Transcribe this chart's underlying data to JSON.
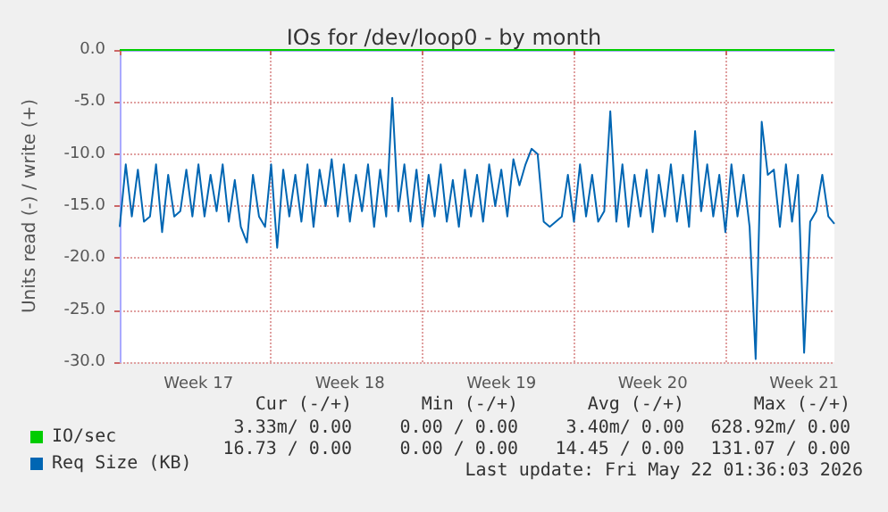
{
  "chart_data": {
    "type": "line",
    "title": "IOs for /dev/loop0 - by month",
    "ylabel": "Units read (-) / write (+)",
    "categories": [
      null,
      null,
      null,
      null,
      null,
      null,
      null,
      null,
      null,
      null,
      null,
      null,
      null,
      "Week 17",
      null,
      null,
      null,
      null,
      null,
      null,
      null,
      null,
      null,
      null,
      null,
      null,
      null,
      null,
      null,
      null,
      null,
      null,
      null,
      null,
      null,
      null,
      null,
      null,
      "Week 18",
      null,
      null,
      null,
      null,
      null,
      null,
      null,
      null,
      null,
      null,
      null,
      null,
      null,
      null,
      null,
      null,
      null,
      null,
      null,
      null,
      null,
      null,
      null,
      null,
      "Week 19",
      null,
      null,
      null,
      null,
      null,
      null,
      null,
      null,
      null,
      null,
      null,
      null,
      null,
      null,
      null,
      null,
      null,
      null,
      null,
      null,
      null,
      null,
      null,
      null,
      "Week 20",
      null,
      null,
      null,
      null,
      null,
      null,
      null,
      null,
      null,
      null,
      null,
      null,
      null,
      null,
      null,
      null,
      null,
      null,
      null,
      null,
      null,
      null,
      null,
      null,
      "Week 21",
      null,
      null,
      null,
      null,
      null
    ],
    "ylim": [
      -30,
      0
    ],
    "yticks": [
      {
        "value": -30,
        "label": "-30.0"
      },
      {
        "value": -25,
        "label": "-25.0"
      },
      {
        "value": -20,
        "label": "-20.0"
      },
      {
        "value": -15,
        "label": "-15.0"
      },
      {
        "value": -10,
        "label": "-10.0"
      },
      {
        "value": -5,
        "label": "-5.0"
      },
      {
        "value": 0,
        "label": "0.0"
      }
    ],
    "grid": true,
    "legend": "bottom left",
    "marker": "none",
    "line_style": "solid",
    "series": [
      {
        "name": "IO/sec",
        "color": "#00cc00",
        "values": [
          0,
          0,
          0,
          0,
          0,
          0,
          0,
          0,
          0,
          0,
          0,
          0,
          0,
          0,
          0,
          0,
          0,
          0,
          0,
          0,
          0,
          0,
          0,
          0,
          0,
          0,
          0,
          0,
          0,
          0,
          0,
          0,
          0,
          0,
          0,
          0,
          0,
          0,
          0,
          0,
          0,
          0,
          0,
          0,
          0,
          0,
          0,
          0,
          0,
          0,
          0,
          0,
          0,
          0,
          0,
          0,
          0,
          0,
          0,
          0,
          0,
          0,
          0,
          0,
          0,
          0,
          0,
          0,
          0,
          0,
          0,
          0,
          0,
          0,
          0,
          0,
          0,
          0,
          0,
          0,
          0,
          0,
          0,
          0,
          0,
          0,
          0,
          0,
          0,
          0,
          0,
          0,
          0,
          0,
          0,
          0,
          0,
          0,
          0,
          0,
          0,
          0,
          0,
          0,
          0,
          0,
          0,
          0,
          0,
          0,
          0,
          0,
          0,
          0,
          0,
          0,
          0,
          0,
          0
        ]
      },
      {
        "name": "Req Size (KB)",
        "color": "#0066b3",
        "values": [
          -17,
          -11,
          -16,
          -11.5,
          -16.5,
          -16,
          -11,
          -17.5,
          -12,
          -16,
          -15.5,
          -11.5,
          -16,
          -11,
          -16,
          -12,
          -15.5,
          -11,
          -16.5,
          -12.5,
          -17,
          -18.5,
          -12,
          -16,
          -17,
          -11,
          -19,
          -11.5,
          -16,
          -12,
          -16.5,
          -11,
          -17,
          -11.5,
          -15,
          -10.5,
          -16,
          -11,
          -16.5,
          -12,
          -15.5,
          -11,
          -17,
          -11.5,
          -16,
          -4.6,
          -15.5,
          -11,
          -16.5,
          -11.5,
          -17,
          -12,
          -16,
          -11,
          -16.5,
          -12.5,
          -17,
          -11.5,
          -16,
          -12,
          -16.5,
          -11,
          -15,
          -11.5,
          -16,
          -10.5,
          -13,
          -11,
          -9.5,
          -10,
          -16.5,
          -17,
          -16.5,
          -16,
          -12,
          -16.5,
          -11,
          -16,
          -12,
          -16.5,
          -15.5,
          -5.9,
          -16.5,
          -11,
          -17,
          -12,
          -16,
          -11.5,
          -17.5,
          -12,
          -16,
          -11,
          -16.5,
          -12,
          -17,
          -7.8,
          -15.5,
          -11,
          -16,
          -12,
          -17.5,
          -11,
          -16,
          -12,
          -17,
          -29.7,
          -6.9,
          -12,
          -11.5,
          -17,
          -11,
          -16.5,
          -12,
          -29.1,
          -16.5,
          -15.5,
          -12,
          -16,
          -16.7
        ]
      }
    ],
    "annotations": [
      "Cur (-/+)",
      "Min (-/+)",
      "Avg (-/+)",
      "Max (-/+)",
      "3.33m/ 0.00",
      "0.00 / 0.00",
      "3.40m/ 0.00",
      "628.92m/ 0.00",
      "16.73 / 0.00",
      "0.00 / 0.00",
      "14.45 / 0.00",
      "131.07 / 0.00",
      "Last update: Fri May 22 01:36:03 2026"
    ]
  }
}
